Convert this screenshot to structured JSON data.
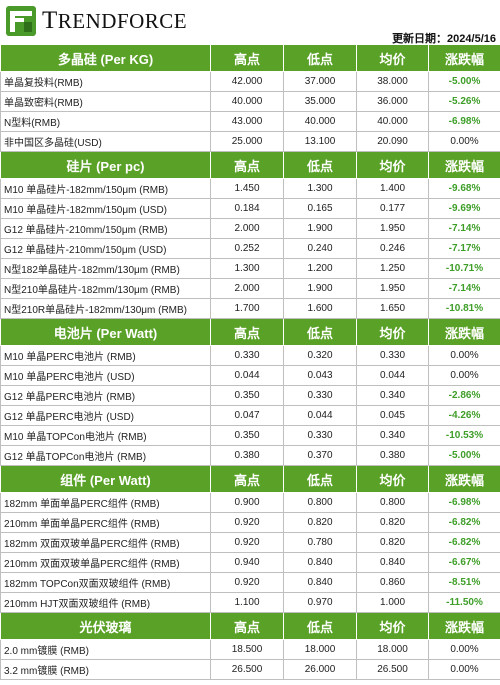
{
  "brand": {
    "logo_text_first": "T",
    "logo_text_rest": "RENDFORCE",
    "logo_mark_letter": "T"
  },
  "update_date": "更新日期：2024/5/16",
  "columns": {
    "high": "高点",
    "low": "低点",
    "avg": "均价",
    "change": "涨跌幅"
  },
  "sections": [
    {
      "title": "多晶硅 (Per KG)",
      "rows": [
        {
          "name": "单晶复投料(RMB)",
          "high": "42.000",
          "low": "37.000",
          "avg": "38.000",
          "change": "-5.00%"
        },
        {
          "name": "单晶致密料(RMB)",
          "high": "40.000",
          "low": "35.000",
          "avg": "36.000",
          "change": "-5.26%"
        },
        {
          "name": "N型料(RMB)",
          "high": "43.000",
          "low": "40.000",
          "avg": "40.000",
          "change": "-6.98%"
        },
        {
          "name": "非中国区多晶硅(USD)",
          "high": "25.000",
          "low": "13.100",
          "avg": "20.090",
          "change": "0.00%"
        }
      ]
    },
    {
      "title": "硅片 (Per pc)",
      "rows": [
        {
          "name": "M10 单晶硅片-182mm/150μm (RMB)",
          "high": "1.450",
          "low": "1.300",
          "avg": "1.400",
          "change": "-9.68%"
        },
        {
          "name": "M10 单晶硅片-182mm/150μm (USD)",
          "high": "0.184",
          "low": "0.165",
          "avg": "0.177",
          "change": "-9.69%"
        },
        {
          "name": "G12 单晶硅片-210mm/150μm  (RMB)",
          "high": "2.000",
          "low": "1.900",
          "avg": "1.950",
          "change": "-7.14%"
        },
        {
          "name": "G12 单晶硅片-210mm/150μm  (USD)",
          "high": "0.252",
          "low": "0.240",
          "avg": "0.246",
          "change": "-7.17%"
        },
        {
          "name": "N型182单晶硅片-182mm/130μm (RMB)",
          "high": "1.300",
          "low": "1.200",
          "avg": "1.250",
          "change": "-10.71%"
        },
        {
          "name": "N型210单晶硅片-182mm/130μm (RMB)",
          "high": "2.000",
          "low": "1.900",
          "avg": "1.950",
          "change": "-7.14%"
        },
        {
          "name": "N型210R单晶硅片-182mm/130μm (RMB)",
          "high": "1.700",
          "low": "1.600",
          "avg": "1.650",
          "change": "-10.81%"
        }
      ]
    },
    {
      "title": "电池片 (Per Watt)",
      "rows": [
        {
          "name": "M10 单晶PERC电池片 (RMB)",
          "high": "0.330",
          "low": "0.320",
          "avg": "0.330",
          "change": "0.00%"
        },
        {
          "name": "M10 单晶PERC电池片 (USD)",
          "high": "0.044",
          "low": "0.043",
          "avg": "0.044",
          "change": "0.00%"
        },
        {
          "name": "G12 单晶PERC电池片 (RMB)",
          "high": "0.350",
          "low": "0.330",
          "avg": "0.340",
          "change": "-2.86%"
        },
        {
          "name": "G12 单晶PERC电池片 (USD)",
          "high": "0.047",
          "low": "0.044",
          "avg": "0.045",
          "change": "-4.26%"
        },
        {
          "name": "M10 单晶TOPCon电池片 (RMB)",
          "high": "0.350",
          "low": "0.330",
          "avg": "0.340",
          "change": "-10.53%"
        },
        {
          "name": "G12 单晶TOPCon电池片 (RMB)",
          "high": "0.380",
          "low": "0.370",
          "avg": "0.380",
          "change": "-5.00%"
        }
      ]
    },
    {
      "title": "组件 (Per Watt)",
      "rows": [
        {
          "name": "182mm 单面单晶PERC组件 (RMB)",
          "high": "0.900",
          "low": "0.800",
          "avg": "0.800",
          "change": "-6.98%"
        },
        {
          "name": "210mm 单面单晶PERC组件 (RMB)",
          "high": "0.920",
          "low": "0.820",
          "avg": "0.820",
          "change": "-6.82%"
        },
        {
          "name": "182mm 双面双玻单晶PERC组件 (RMB)",
          "high": "0.920",
          "low": "0.780",
          "avg": "0.820",
          "change": "-6.82%"
        },
        {
          "name": "210mm 双面双玻单晶PERC组件 (RMB)",
          "high": "0.940",
          "low": "0.840",
          "avg": "0.840",
          "change": "-6.67%"
        },
        {
          "name": "182mm TOPCon双面双玻组件 (RMB)",
          "high": "0.920",
          "low": "0.840",
          "avg": "0.860",
          "change": "-8.51%"
        },
        {
          "name": "210mm HJT双面双玻组件 (RMB)",
          "high": "1.100",
          "low": "0.970",
          "avg": "1.000",
          "change": "-11.50%"
        }
      ]
    },
    {
      "title": "光伏玻璃",
      "rows": [
        {
          "name": "2.0 mm镀膜 (RMB)",
          "high": "18.500",
          "low": "18.000",
          "avg": "18.000",
          "change": "0.00%"
        },
        {
          "name": "3.2 mm镀膜 (RMB)",
          "high": "26.500",
          "low": "26.000",
          "avg": "26.500",
          "change": "0.00%"
        }
      ]
    }
  ],
  "colors": {
    "header_green": "#5aa227",
    "negative_change": "#3e9e28"
  },
  "icons": {
    "logo": "trendforce-logo-icon"
  }
}
